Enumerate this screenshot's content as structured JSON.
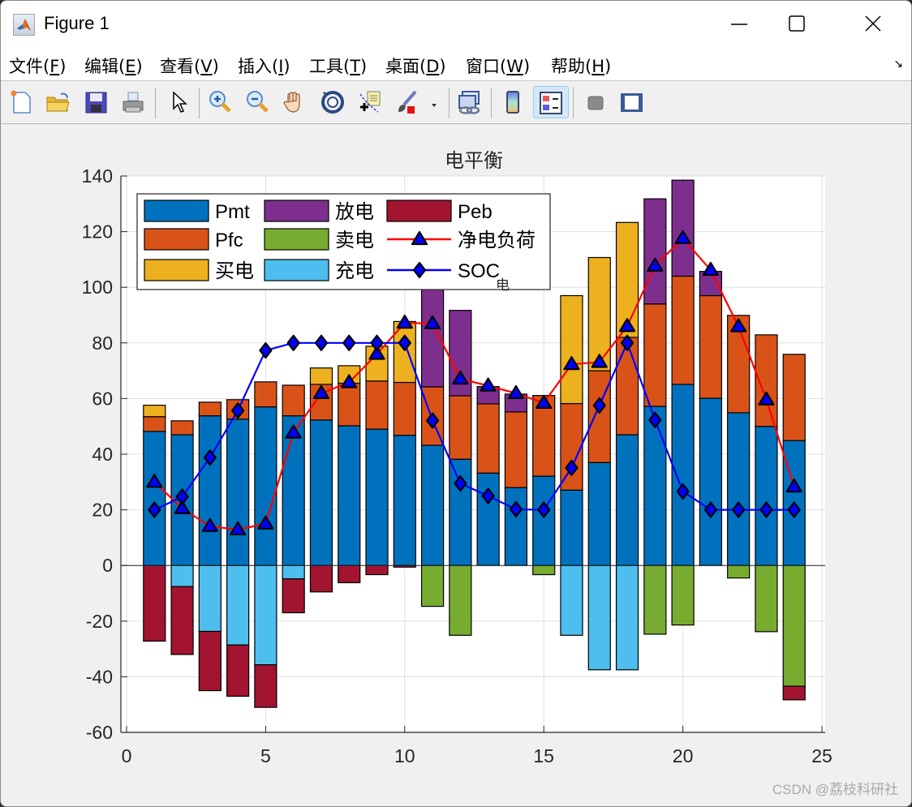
{
  "window": {
    "title": "Figure 1",
    "controls": [
      "minimize",
      "maximize",
      "close"
    ]
  },
  "menubar": {
    "items": [
      {
        "label": "文件(",
        "key": "F",
        "suffix": ")"
      },
      {
        "label": "编辑(",
        "key": "E",
        "suffix": ")"
      },
      {
        "label": "查看(",
        "key": "V",
        "suffix": ")"
      },
      {
        "label": "插入(",
        "key": "I",
        "suffix": ")"
      },
      {
        "label": "工具(",
        "key": "T",
        "suffix": ")"
      },
      {
        "label": "桌面(",
        "key": "D",
        "suffix": ")"
      },
      {
        "label": "窗口(",
        "key": "W",
        "suffix": ")"
      },
      {
        "label": "帮助(",
        "key": "H",
        "suffix": ")"
      }
    ],
    "corner_icon": "dock-arrow-icon"
  },
  "toolbar": {
    "tools": [
      {
        "name": "new-figure",
        "icon": "new-file-icon"
      },
      {
        "name": "open-file",
        "icon": "folder-open-icon"
      },
      {
        "name": "save",
        "icon": "floppy-disk-icon"
      },
      {
        "name": "print",
        "icon": "printer-icon"
      },
      {
        "name": "edit-plot",
        "icon": "arrow-cursor-icon"
      },
      {
        "name": "zoom-in",
        "icon": "zoom-in-icon"
      },
      {
        "name": "zoom-out",
        "icon": "zoom-out-icon"
      },
      {
        "name": "pan",
        "icon": "hand-icon"
      },
      {
        "name": "rotate-3d",
        "icon": "rotate-3d-icon"
      },
      {
        "name": "data-cursor",
        "icon": "data-tip-icon"
      },
      {
        "name": "brush",
        "icon": "brush-icon"
      },
      {
        "name": "link-plot",
        "icon": "link-plot-icon"
      },
      {
        "name": "insert-colorbar",
        "icon": "colorbar-icon"
      },
      {
        "name": "insert-legend",
        "icon": "legend-icon",
        "active": true
      },
      {
        "name": "hide-plot-tools",
        "icon": "hide-tools-icon"
      },
      {
        "name": "show-plot-tools",
        "icon": "show-tools-icon"
      }
    ]
  },
  "watermark": "CSDN @荔枝科研社",
  "colors": {
    "Pmt": "#0072bd",
    "Pfc": "#d95319",
    "buy": "#edb120",
    "discharge": "#7e2f8e",
    "sell": "#77ac30",
    "charge": "#4dbeee",
    "Peb": "#a2142f",
    "net_load_line": "#ff0000",
    "soc_line": "#0000ff",
    "marker_fill": "#0000ff"
  },
  "chart_data": {
    "type": "bar",
    "stacked": true,
    "title": "电平衡",
    "xlabel": "",
    "ylabel": "",
    "xlim": [
      0,
      25
    ],
    "ylim": [
      -60,
      140
    ],
    "xticks": [
      0,
      5,
      10,
      15,
      20,
      25
    ],
    "yticks": [
      -60,
      -40,
      -20,
      0,
      20,
      40,
      60,
      80,
      100,
      120,
      140
    ],
    "grid": true,
    "legend_position": "top-left",
    "legend_columns": 3,
    "x": [
      1,
      2,
      3,
      4,
      5,
      6,
      7,
      8,
      9,
      10,
      11,
      12,
      13,
      14,
      15,
      16,
      17,
      18,
      19,
      20,
      21,
      22,
      23,
      24
    ],
    "positive_series": [
      {
        "name": "Pmt",
        "key": "Pmt",
        "values": [
          48.2,
          47.0,
          53.8,
          52.6,
          57.0,
          53.8,
          52.3,
          50.2,
          49.0,
          46.8,
          43.2,
          38.2,
          33.2,
          28.0,
          32.1,
          27.1,
          37.0,
          47.0,
          57.2,
          65.1,
          60.1,
          54.9,
          50.0,
          44.9
        ]
      },
      {
        "name": "Pfc",
        "key": "Pfc",
        "values": [
          5.3,
          5.0,
          4.9,
          7.0,
          9.0,
          11.0,
          12.8,
          15.3,
          17.3,
          19.0,
          21.0,
          22.8,
          24.9,
          27.2,
          29.0,
          31.1,
          33.0,
          35.0,
          36.8,
          38.9,
          36.9,
          35.0,
          32.9,
          31.0
        ]
      },
      {
        "name": "买电",
        "key": "buy",
        "values": [
          4.1,
          0,
          0,
          0,
          0,
          0,
          5.9,
          6.3,
          12.5,
          21.9,
          0,
          0,
          0,
          0,
          0,
          38.8,
          40.7,
          41.3,
          0,
          0,
          0,
          0,
          0,
          0
        ]
      },
      {
        "name": "放电",
        "key": "discharge",
        "values": [
          0,
          0,
          0,
          0,
          0,
          0,
          0,
          0,
          0,
          0,
          35.2,
          30.7,
          6.2,
          6.4,
          0,
          0,
          0,
          0,
          37.8,
          34.5,
          8.7,
          0,
          0,
          0
        ]
      }
    ],
    "negative_series": [
      {
        "name": "卖电",
        "key": "sell",
        "values": [
          0,
          0,
          0,
          0,
          0,
          0,
          0,
          0,
          0,
          0,
          -14.7,
          -25.1,
          0,
          0,
          -3.3,
          0,
          0,
          0,
          -24.7,
          -21.4,
          0,
          -4.5,
          -23.8,
          -43.4
        ]
      },
      {
        "name": "充电",
        "key": "charge",
        "values": [
          0,
          -7.6,
          -23.7,
          -28.6,
          -35.7,
          -4.8,
          0,
          0,
          0,
          0,
          0,
          0,
          0,
          0,
          0,
          -25.1,
          -37.5,
          -37.5,
          0,
          0,
          0,
          0,
          0,
          0
        ]
      },
      {
        "name": "Peb",
        "key": "Peb",
        "values": [
          -27.2,
          -24.4,
          -21.3,
          -18.4,
          -15.3,
          -12.2,
          -9.5,
          -6.2,
          -3.3,
          -0.6,
          0,
          0,
          0,
          0,
          0,
          0,
          0,
          0,
          0,
          0,
          0,
          0,
          0,
          -4.9
        ]
      }
    ],
    "line_series": [
      {
        "name": "净电负荷",
        "key": "net_load",
        "marker": "triangle",
        "values": [
          30.0,
          20.5,
          14.1,
          12.9,
          15.0,
          47.7,
          61.9,
          65.8,
          76.0,
          87.2,
          87.0,
          67.1,
          64.6,
          61.9,
          58.4,
          72.3,
          73.1,
          86.0,
          107.7,
          117.6,
          106.2,
          85.9,
          59.6,
          28.3
        ]
      },
      {
        "name": "SOC",
        "name_subscript": "电",
        "key": "soc",
        "marker": "diamond",
        "values": [
          20.0,
          24.7,
          38.8,
          55.7,
          77.3,
          80.0,
          80.0,
          80.0,
          80.0,
          80.0,
          52.1,
          29.5,
          25.0,
          20.2,
          20.0,
          35.1,
          57.5,
          80.0,
          52.3,
          26.6,
          20.0,
          20.0,
          20.0,
          20.0
        ]
      }
    ],
    "legend": [
      {
        "label": "Pmt",
        "type": "patch",
        "key": "Pmt"
      },
      {
        "label": "Pfc",
        "type": "patch",
        "key": "Pfc"
      },
      {
        "label": "买电",
        "type": "patch",
        "key": "buy"
      },
      {
        "label": "放电",
        "type": "patch",
        "key": "discharge"
      },
      {
        "label": "卖电",
        "type": "patch",
        "key": "sell"
      },
      {
        "label": "充电",
        "type": "patch",
        "key": "charge"
      },
      {
        "label": "Peb",
        "type": "patch",
        "key": "Peb"
      },
      {
        "label": "净电负荷",
        "type": "line",
        "key": "net_load"
      },
      {
        "label": "SOC",
        "subscript": "电",
        "type": "line",
        "key": "soc"
      }
    ]
  }
}
